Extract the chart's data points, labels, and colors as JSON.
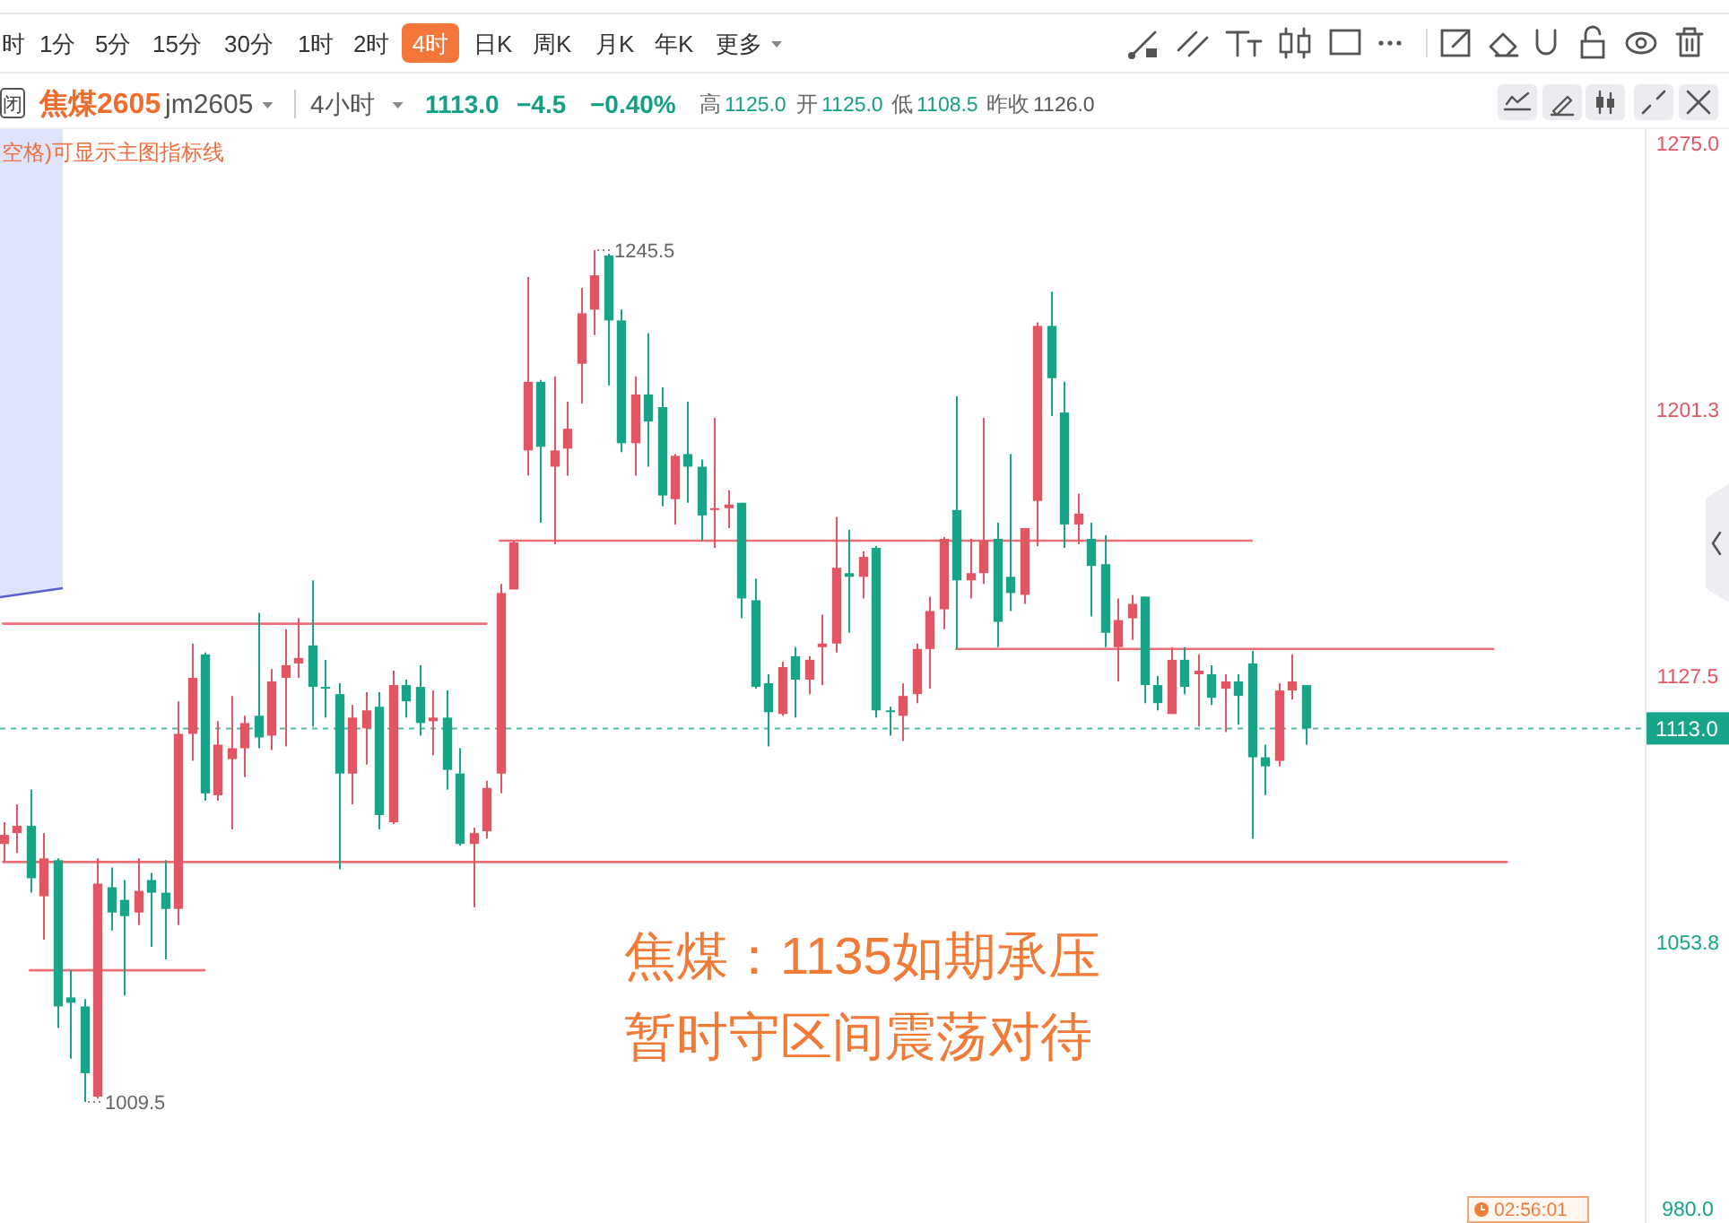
{
  "chart_data": {
    "type": "candlestick",
    "title": "焦煤：1135如期承压",
    "subtitle": "暂时守区间震荡对待",
    "categories": [
      null,
      null,
      null,
      null,
      null,
      null,
      null,
      null,
      null,
      null,
      null,
      null,
      null,
      null,
      null,
      null,
      null,
      null,
      null,
      null,
      null,
      null,
      null,
      null,
      null,
      null,
      null,
      null,
      null,
      null,
      null,
      null,
      null,
      null,
      null,
      null,
      null,
      null,
      null,
      null,
      null,
      null,
      null,
      null,
      null,
      null,
      null,
      null,
      null,
      null,
      null,
      null,
      null,
      null,
      null,
      null,
      null,
      null,
      null,
      null,
      null,
      null,
      null,
      null,
      null,
      null,
      null,
      null,
      null,
      null,
      null,
      null,
      null,
      null,
      null,
      null,
      null,
      null,
      null,
      null,
      null,
      null,
      null,
      null,
      null,
      null,
      null,
      null,
      null,
      null,
      null,
      null,
      null,
      null,
      null,
      null,
      null,
      null,
      null,
      null,
      null,
      null,
      null,
      null,
      null,
      null,
      null,
      null,
      null,
      null,
      null,
      null,
      null
    ],
    "ohlc": [
      [
        1081,
        1087,
        1076,
        1083.5
      ],
      [
        1084,
        1092,
        1078.5,
        1086
      ],
      [
        1086,
        1096,
        1067.5,
        1071.5
      ],
      [
        1066.5,
        1084,
        1054.5,
        1077
      ],
      [
        1076.5,
        1077,
        1030,
        1036
      ],
      [
        1038.5,
        1046,
        1021.5,
        1037
      ],
      [
        1036,
        1038,
        1009.5,
        1017.5
      ],
      [
        1011,
        1077,
        1010.5,
        1070
      ],
      [
        1069,
        1074.5,
        1057,
        1062
      ],
      [
        1065.5,
        1071,
        1039,
        1061
      ],
      [
        1062,
        1077,
        1058.5,
        1068
      ],
      [
        1071,
        1073,
        1052.5,
        1067.5
      ],
      [
        1067.5,
        1076.5,
        1049,
        1063
      ],
      [
        1063,
        1120.5,
        1058.5,
        1111.5
      ],
      [
        1111.5,
        1136.5,
        1104,
        1127
      ],
      [
        1133.5,
        1134,
        1093,
        1095
      ],
      [
        1094.5,
        1115,
        1093,
        1108.5
      ],
      [
        1104.5,
        1122,
        1085,
        1107.5
      ],
      [
        1107.5,
        1116.5,
        1099.5,
        1114.5
      ],
      [
        1116.5,
        1145,
        1107.5,
        1110.5
      ],
      [
        1111,
        1129.5,
        1107,
        1126
      ],
      [
        1127,
        1140.5,
        1108,
        1130.5
      ],
      [
        1131,
        1143.5,
        1127,
        1132.5
      ],
      [
        1136,
        1154,
        1113.5,
        1124.5
      ],
      [
        1124.5,
        1132,
        1116,
        1124
      ],
      [
        1122.5,
        1125.5,
        1074,
        1100.5
      ],
      [
        1100.5,
        1119.5,
        1092,
        1116
      ],
      [
        1113,
        1123,
        1103,
        1118
      ],
      [
        1119,
        1123,
        1085,
        1089
      ],
      [
        1087,
        1129,
        1086.5,
        1125
      ],
      [
        1125,
        1126.5,
        1116,
        1120.5
      ],
      [
        1124.5,
        1130.5,
        1111,
        1114.5
      ],
      [
        1115,
        1123.5,
        1105.5,
        1116
      ],
      [
        1116,
        1123.5,
        1096,
        1101.5
      ],
      [
        1100.5,
        1107.5,
        1080.5,
        1081
      ],
      [
        1081,
        1085.5,
        1063.5,
        1084
      ],
      [
        1084.5,
        1098.5,
        1082.5,
        1096.5
      ],
      [
        1100.5,
        1153,
        1095,
        1150.5
      ],
      [
        1151.5,
        1165,
        1151.5,
        1164.5
      ],
      [
        1190,
        1238,
        1183,
        1209
      ],
      [
        1209,
        1209.5,
        1170,
        1191
      ],
      [
        1185.5,
        1210.5,
        1164,
        1190
      ],
      [
        1190.5,
        1203.5,
        1183,
        1196
      ],
      [
        1214,
        1235,
        1203,
        1228
      ],
      [
        1229,
        1245.5,
        1222,
        1238.5
      ],
      [
        1244,
        1244.5,
        1208,
        1226
      ],
      [
        1226,
        1229,
        1189.5,
        1192
      ],
      [
        1192,
        1210.5,
        1183,
        1205.5
      ],
      [
        1205.5,
        1222.5,
        1185.5,
        1198
      ],
      [
        1202,
        1207.5,
        1174.5,
        1177.5
      ],
      [
        1176.5,
        1189,
        1169.5,
        1188.5
      ],
      [
        1189,
        1203.5,
        1175.5,
        1185.5
      ],
      [
        1185.5,
        1187.5,
        1165,
        1172
      ],
      [
        1173.5,
        1199,
        1163,
        1174
      ],
      [
        1174,
        1179,
        1168.5,
        1175
      ],
      [
        1175.5,
        1175.5,
        1143.5,
        1149
      ],
      [
        1148.5,
        1154.5,
        1124,
        1124.5
      ],
      [
        1125.5,
        1128,
        1108,
        1117.5
      ],
      [
        1117,
        1131.5,
        1116.5,
        1130
      ],
      [
        1133,
        1135.5,
        1116,
        1126.5
      ],
      [
        1126.5,
        1133,
        1122.5,
        1132
      ],
      [
        1135.5,
        1144.5,
        1125,
        1136.5
      ],
      [
        1136.5,
        1171.5,
        1134,
        1157.5
      ],
      [
        1156,
        1168,
        1139.5,
        1155
      ],
      [
        1155,
        1162,
        1149,
        1160.5
      ],
      [
        1163,
        1163.5,
        1116,
        1118
      ],
      [
        1118,
        1119,
        1111,
        1117.5
      ],
      [
        1116.5,
        1125.5,
        1109.5,
        1122
      ],
      [
        1122.5,
        1136.5,
        1120,
        1135
      ],
      [
        1135,
        1149.5,
        1124,
        1145.5
      ],
      [
        1146,
        1166,
        1140.5,
        1165.5
      ],
      [
        1173.5,
        1205,
        1135,
        1154
      ],
      [
        1154,
        1165.5,
        1149,
        1156
      ],
      [
        1156,
        1199,
        1153,
        1165
      ],
      [
        1165.5,
        1170,
        1135.5,
        1142.5
      ],
      [
        1155,
        1189,
        1145.5,
        1150.5
      ],
      [
        1150,
        1168.5,
        1147.5,
        1168.5
      ],
      [
        1176,
        1225.5,
        1163.5,
        1224.5
      ],
      [
        1224.5,
        1234,
        1199.5,
        1210
      ],
      [
        1200.5,
        1209,
        1163,
        1169.5
      ],
      [
        1169.5,
        1178,
        1164,
        1172.5
      ],
      [
        1165.5,
        1170,
        1144,
        1158
      ],
      [
        1158.5,
        1166.5,
        1135.5,
        1139.5
      ],
      [
        1135.5,
        1149,
        1126,
        1143
      ],
      [
        1143.5,
        1150,
        1137.5,
        1147.5
      ],
      [
        1149.5,
        1149.5,
        1120,
        1125
      ],
      [
        1125,
        1127.5,
        1118,
        1120
      ],
      [
        1117,
        1135.5,
        1117,
        1132
      ],
      [
        1132,
        1135.5,
        1122.5,
        1124.5
      ],
      [
        1128,
        1133.5,
        1113.5,
        1129
      ],
      [
        1128,
        1130.5,
        1119.5,
        1121.5
      ],
      [
        1124,
        1128,
        1112,
        1126
      ],
      [
        1126,
        1128,
        1114,
        1122
      ],
      [
        1131,
        1134.5,
        1082.5,
        1105
      ],
      [
        1105,
        1108.5,
        1094.5,
        1102.5
      ],
      [
        1104,
        1125.5,
        1102.5,
        1123.5
      ],
      [
        1123.5,
        1133.5,
        1121,
        1126
      ],
      [
        1125,
        1125,
        1108.5,
        1113
      ],
      null,
      null,
      null,
      null,
      null,
      null,
      null,
      null,
      null,
      null,
      null,
      null,
      null,
      null,
      null
    ],
    "colors": [
      "#e25563",
      "#e25563",
      "#16a588",
      "#e25563",
      "#16a588",
      "#16a588",
      "#16a588",
      "#e25563",
      "#16a588",
      "#16a588",
      "#e25563",
      "#16a588",
      "#16a588",
      "#e25563",
      "#e25563",
      "#16a588",
      "#e25563",
      "#e25563",
      "#e25563",
      "#16a588",
      "#e25563",
      "#e25563",
      "#e25563",
      "#16a588",
      "#16a588",
      "#16a588",
      "#e25563",
      "#e25563",
      "#16a588",
      "#e25563",
      "#16a588",
      "#16a588",
      "#e25563",
      "#16a588",
      "#16a588",
      "#e25563",
      "#e25563",
      "#e25563",
      "#e25563",
      "#e25563",
      "#16a588",
      "#e25563",
      "#e25563",
      "#e25563",
      "#e25563",
      "#16a588",
      "#16a588",
      "#e25563",
      "#16a588",
      "#16a588",
      "#e25563",
      "#16a588",
      "#16a588",
      "#e25563",
      "#e25563",
      "#16a588",
      "#16a588",
      "#16a588",
      "#e25563",
      "#16a588",
      "#e25563",
      "#e25563",
      "#e25563",
      "#16a588",
      "#e25563",
      "#16a588",
      "#16a588",
      "#e25563",
      "#e25563",
      "#e25563",
      "#e25563",
      "#16a588",
      "#e25563",
      "#e25563",
      "#16a588",
      "#16a588",
      "#e25563",
      "#e25563",
      "#16a588",
      "#16a588",
      "#e25563",
      "#16a588",
      "#16a588",
      "#e25563",
      "#e25563",
      "#16a588",
      "#16a588",
      "#e25563",
      "#16a588",
      "#e25563",
      "#16a588",
      "#e25563",
      "#16a588",
      "#16a588",
      "#16a588",
      "#e25563",
      "#e25563",
      "#16a588",
      null,
      null,
      null,
      null,
      null,
      null,
      null,
      null,
      null,
      null,
      null,
      null,
      null,
      null,
      null
    ],
    "series": [
      {
        "type": "line",
        "color": "#ec6f78",
        "values": [
          1142,
          1142,
          1142,
          1142,
          1142,
          1142,
          1142,
          1142,
          1142,
          1142,
          1142,
          1142,
          1142,
          1142,
          1142,
          1142,
          1142,
          1142,
          1142,
          1142,
          1142,
          1142,
          1142,
          1142,
          1142,
          1142,
          1142,
          1142,
          1142,
          1142,
          1142,
          1142,
          1142,
          1142,
          1142,
          1142,
          1142,
          null,
          null,
          null,
          null,
          null,
          null,
          null,
          null,
          null,
          null,
          null,
          null,
          null,
          null,
          null,
          null,
          null,
          null,
          null,
          null,
          null,
          null,
          null,
          null,
          null,
          null,
          null,
          null,
          null,
          null,
          null,
          null,
          null,
          null,
          null,
          null,
          null,
          null,
          null,
          null,
          null,
          null,
          null,
          null,
          null,
          null,
          null,
          null,
          null,
          null,
          null,
          null,
          null,
          null,
          null,
          null,
          null,
          null,
          null,
          null,
          null,
          null,
          null,
          null,
          null,
          null,
          null,
          null,
          null,
          null,
          null,
          null,
          null,
          null,
          null,
          null
        ]
      },
      {
        "type": "line",
        "color": "#ec6f78",
        "values": [
          null,
          null,
          null,
          null,
          null,
          null,
          null,
          null,
          null,
          null,
          null,
          null,
          null,
          null,
          null,
          null,
          null,
          null,
          null,
          null,
          null,
          null,
          null,
          null,
          null,
          null,
          null,
          null,
          null,
          null,
          null,
          null,
          null,
          null,
          null,
          null,
          null,
          1165,
          1165,
          1165,
          1165,
          1165,
          1165,
          1165,
          1165,
          1165,
          1165,
          1165,
          1165,
          1165,
          1165,
          1165,
          1165,
          1165,
          1165,
          1165,
          1165,
          1165,
          1165,
          1165,
          1165,
          1165,
          1165,
          1165,
          1165,
          1165,
          1165,
          1165,
          1165,
          1165,
          1165,
          1165,
          1165,
          1165,
          1165,
          1165,
          1165,
          1165,
          1165,
          1165,
          1165,
          1165,
          1165,
          1165,
          1165,
          1165,
          1165,
          1165,
          1165,
          1165,
          1165,
          1165,
          1165,
          1165,
          null,
          null,
          null,
          null,
          null,
          null,
          null,
          null,
          null,
          null,
          null,
          null,
          null,
          null,
          null,
          null,
          null,
          null,
          null
        ]
      },
      {
        "type": "line",
        "color": "#ec6f78",
        "values": [
          null,
          null,
          null,
          null,
          null,
          null,
          null,
          null,
          null,
          null,
          null,
          null,
          null,
          null,
          null,
          null,
          null,
          null,
          null,
          null,
          null,
          null,
          null,
          null,
          null,
          null,
          null,
          null,
          null,
          null,
          null,
          null,
          null,
          null,
          null,
          null,
          null,
          null,
          null,
          null,
          null,
          null,
          null,
          null,
          null,
          null,
          null,
          null,
          null,
          null,
          null,
          null,
          null,
          null,
          null,
          null,
          null,
          null,
          null,
          null,
          null,
          null,
          null,
          null,
          null,
          null,
          null,
          null,
          null,
          null,
          null,
          1135,
          1135,
          1135,
          1135,
          1135,
          1135,
          1135,
          1135,
          1135,
          1135,
          1135,
          1135,
          1135,
          1135,
          1135,
          1135,
          1135,
          1135,
          1135,
          1135,
          1135,
          1135,
          1135,
          1135,
          1135,
          1135,
          1135,
          1135,
          1135,
          1135,
          1135,
          1135,
          1135,
          1135,
          1135,
          1135,
          1135,
          1135,
          1135,
          1135,
          1135,
          null
        ]
      },
      {
        "type": "line",
        "color": "#ec6f78",
        "values": [
          1076,
          1076,
          1076,
          1076,
          1076,
          1076,
          1076,
          1076,
          1076,
          1076,
          1076,
          1076,
          1076,
          1076,
          1076,
          1076,
          1076,
          1076,
          1076,
          1076,
          1076,
          1076,
          1076,
          1076,
          1076,
          1076,
          1076,
          1076,
          1076,
          1076,
          1076,
          1076,
          1076,
          1076,
          1076,
          1076,
          1076,
          1076,
          1076,
          1076,
          1076,
          1076,
          1076,
          1076,
          1076,
          1076,
          1076,
          1076,
          1076,
          1076,
          1076,
          1076,
          1076,
          1076,
          1076,
          1076,
          1076,
          1076,
          1076,
          1076,
          1076,
          1076,
          1076,
          1076,
          1076,
          1076,
          1076,
          1076,
          1076,
          1076,
          1076,
          1076,
          1076,
          1076,
          1076,
          1076,
          1076,
          1076,
          1076,
          1076,
          1076,
          1076,
          1076,
          1076,
          1076,
          1076,
          1076,
          1076,
          1076,
          1076,
          1076,
          1076,
          1076,
          1076,
          1076,
          1076,
          1076,
          1076,
          1076,
          1076,
          1076,
          1076,
          1076,
          1076,
          1076,
          1076,
          1076,
          1076,
          1076,
          1076,
          1076,
          1076,
          1076
        ]
      },
      {
        "type": "line",
        "color": "#ec6f78",
        "values": [
          null,
          null,
          1046,
          1046,
          1046,
          1046,
          1046,
          1046,
          1046,
          1046,
          1046,
          1046,
          1046,
          1046,
          1046,
          1046,
          null,
          null,
          null,
          null,
          null,
          null,
          null,
          null,
          null,
          null,
          null,
          null,
          null,
          null,
          null,
          null,
          null,
          null,
          null,
          null,
          null,
          null,
          null,
          null,
          null,
          null,
          null,
          null,
          null,
          null,
          null,
          null,
          null,
          null,
          null,
          null,
          null,
          null,
          null,
          null,
          null,
          null,
          null,
          null,
          null,
          null,
          null,
          null,
          null,
          null,
          null,
          null,
          null,
          null,
          null,
          null,
          null,
          null,
          null,
          null,
          null,
          null,
          null,
          null,
          null,
          null,
          null,
          null,
          null,
          null,
          null,
          null,
          null,
          null,
          null,
          null,
          null,
          null,
          null,
          null,
          null,
          null,
          null,
          null,
          null,
          null,
          null,
          null,
          null,
          null,
          null,
          null,
          null,
          null,
          null,
          null,
          null
        ]
      }
    ],
    "ref_lines": [
      {
        "axis": "y",
        "value": 1113,
        "label": "1113.0",
        "color": "#16a588",
        "line_style": "dotted"
      }
    ],
    "ylim": [
      976,
      1279
    ],
    "yticks": [
      {
        "value": 980,
        "label": "980.0"
      },
      {
        "value": 1053.8,
        "label": "1053.8"
      },
      {
        "value": 1127.5,
        "label": "1127.5"
      },
      {
        "value": 1201.3,
        "label": "1201.3"
      },
      {
        "value": 1275,
        "label": "1275.0"
      }
    ],
    "tick_labels": "y",
    "grid": false,
    "annotations": [
      "时",
      "1分",
      "5分",
      "15分",
      "30分",
      "1时",
      "2时",
      "4时",
      "日K",
      "周K",
      "月K",
      "年K",
      "更多",
      "闭",
      "焦煤2605",
      "jm2605",
      "4小时",
      "1113.0",
      "−4.5",
      "−0.40%",
      "高",
      "1125.0",
      "开",
      "1125.0",
      "低",
      "1108.5",
      "昨收",
      "1126.0",
      "空格)可显示主图指标线",
      "02:56:01",
      "1245.5",
      "1009.5"
    ]
  }
}
